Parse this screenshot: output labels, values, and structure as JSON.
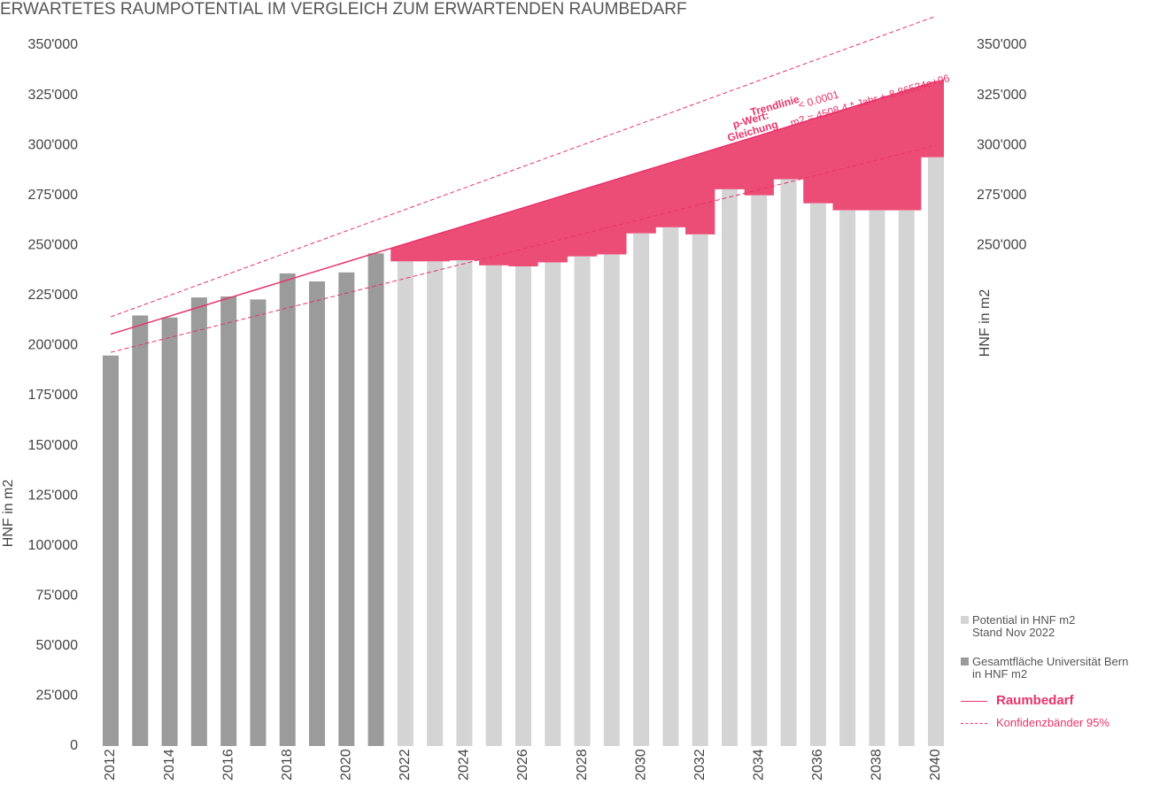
{
  "chart_data": {
    "type": "bar",
    "title": "ERWARTETES RAUMPOTENTIAL IM VERGLEICH ZUM ERWARTENDEN RAUMBEDARF",
    "y_label": "HNF in m2",
    "y2_label": "HNF in m2",
    "categories": [
      "2012",
      null,
      "2014",
      null,
      "2016",
      null,
      "2018",
      null,
      "2020",
      null,
      "2022",
      null,
      "2024",
      null,
      "2026",
      null,
      "2028",
      null,
      "2030",
      null,
      "2032",
      null,
      "2034",
      null,
      "2036",
      null,
      "2038",
      null,
      "2040"
    ],
    "series": [
      {
        "name": "Potential in HNF m2\nStand Nov 2022",
        "color": "#d4d4d4",
        "values": [
          null,
          null,
          null,
          null,
          null,
          null,
          null,
          null,
          null,
          null,
          242000,
          242000,
          242500,
          240000,
          239500,
          241500,
          244500,
          245500,
          256000,
          259000,
          255500,
          278000,
          275000,
          283000,
          271000,
          267500,
          267500,
          267500,
          294000
        ]
      },
      {
        "name": "Gesamtfläche Universität Bern\nin HNF m2",
        "color": "#9b9b9b",
        "values": [
          195000,
          215000,
          214000,
          224000,
          224500,
          223000,
          236000,
          232000,
          236500,
          246000,
          null,
          null,
          null,
          null,
          null,
          null,
          null,
          null,
          null,
          null,
          null,
          null,
          null,
          null,
          null,
          null,
          null,
          null,
          null
        ]
      }
    ],
    "trend": {
      "name": "Raumbedarf",
      "color": "#e8336b",
      "values": [
        205660,
        210168,
        214677,
        219185,
        223694,
        228202,
        232710,
        237219,
        241727,
        246236,
        250744,
        255252,
        259761,
        264269,
        268778,
        273286,
        277794,
        282303,
        286811,
        291320,
        295828,
        300336,
        304845,
        309353,
        313862,
        318370,
        322878,
        327387,
        331895
      ]
    },
    "bands": {
      "name": "Konfidenzbänder 95%",
      "color": "#e8336b",
      "upper": [
        214300,
        219664,
        225029,
        230393,
        235757,
        241121,
        246486,
        251850,
        257214,
        262579,
        267943,
        273307,
        278671,
        284036,
        289400,
        294764,
        300129,
        305493,
        310857,
        316221,
        321586,
        326950,
        332314,
        337679,
        343043,
        348407,
        353771,
        359136,
        364500
      ],
      "lower": [
        196600,
        200293,
        203986,
        207679,
        211371,
        215064,
        218757,
        222450,
        226143,
        229836,
        233529,
        237221,
        240914,
        244607,
        248300,
        251993,
        255686,
        259379,
        263071,
        266764,
        270457,
        274150,
        277843,
        281536,
        285229,
        288921,
        292614,
        296307,
        300000
      ]
    },
    "area_color": "#ec4d77",
    "annotations": {
      "labels": [
        "Trendlinie",
        "p-Wert:",
        "Gleichung"
      ],
      "texts": [
        "< 0.0001",
        "m2 = 4508.4 * Jahr +-8.86524e+06"
      ]
    },
    "ylim": [
      0,
      350000
    ],
    "yticks": [
      0,
      {
        "value": 25000,
        "label": "25'000"
      },
      {
        "value": 50000,
        "label": "50'000"
      },
      {
        "value": 75000,
        "label": "75'000"
      },
      {
        "value": 100000,
        "label": "100'000"
      },
      {
        "value": 125000,
        "label": "125'000"
      },
      {
        "value": 150000,
        "label": "150'000"
      },
      {
        "value": 175000,
        "label": "175'000"
      },
      {
        "value": 200000,
        "label": "200'000"
      },
      {
        "value": 225000,
        "label": "225'000"
      },
      {
        "value": 250000,
        "label": "250'000"
      },
      {
        "value": 275000,
        "label": "275'000"
      },
      {
        "value": 300000,
        "label": "300'000"
      },
      {
        "value": 325000,
        "label": "325'000"
      },
      {
        "value": 350000,
        "label": "350'000"
      }
    ],
    "y2lim": [
      0,
      350000
    ],
    "y2ticks": [
      {
        "value": 250000,
        "label": "250'000"
      },
      {
        "value": 275000,
        "label": "275'000"
      },
      {
        "value": 300000,
        "label": "300'000"
      },
      {
        "value": 325000,
        "label": "325'000"
      },
      {
        "value": 350000,
        "label": "350'000"
      }
    ]
  }
}
